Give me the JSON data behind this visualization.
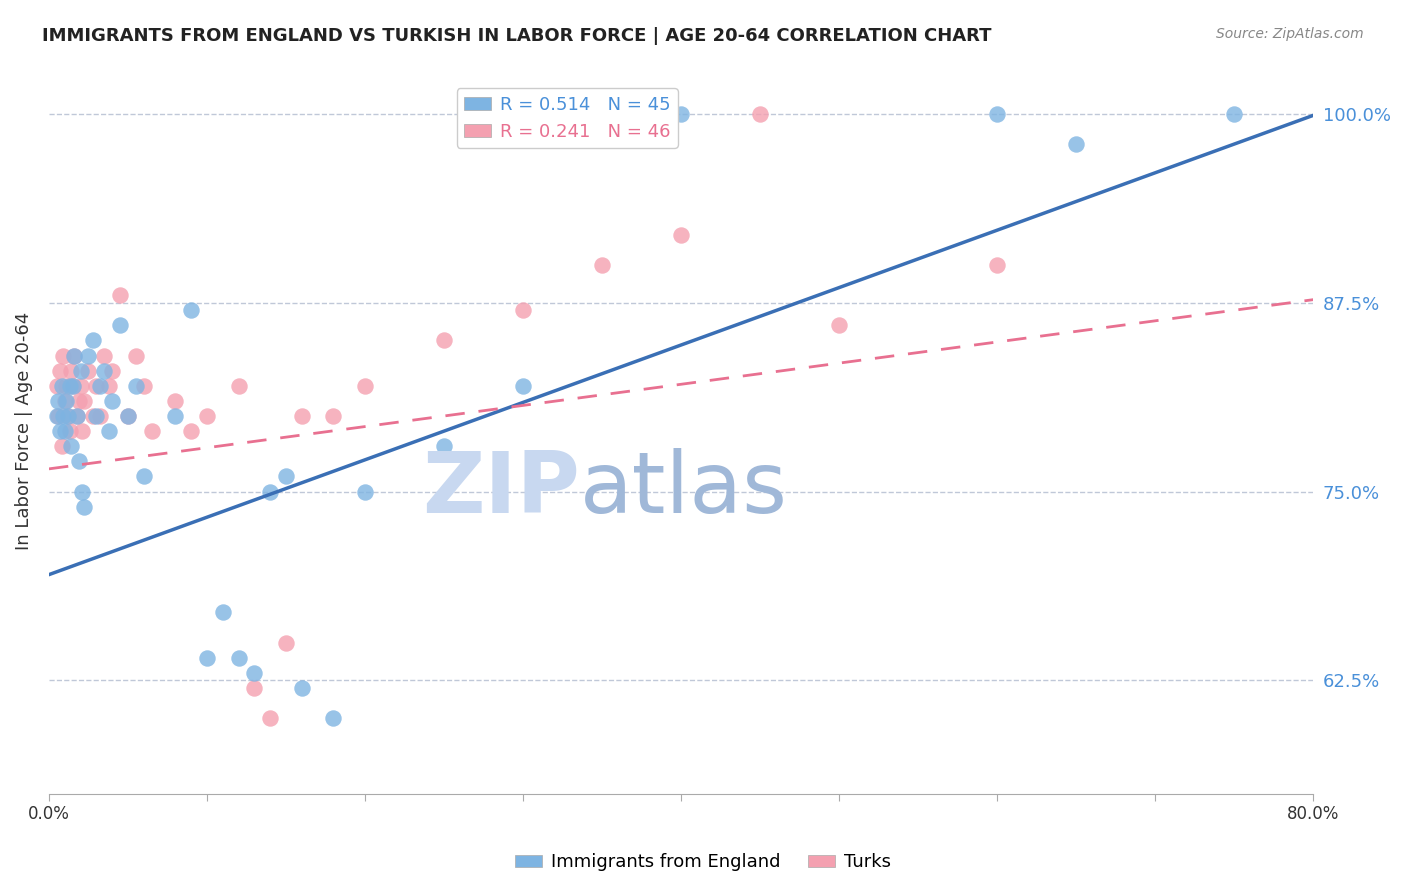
{
  "title": "IMMIGRANTS FROM ENGLAND VS TURKISH IN LABOR FORCE | AGE 20-64 CORRELATION CHART",
  "source": "Source: ZipAtlas.com",
  "ylabel": "In Labor Force | Age 20-64",
  "yticks": [
    0.625,
    0.75,
    0.875,
    1.0
  ],
  "ytick_labels": [
    "62.5%",
    "75.0%",
    "87.5%",
    "100.0%"
  ],
  "xlim": [
    0.0,
    0.8
  ],
  "ylim": [
    0.55,
    1.03
  ],
  "blue_R": 0.514,
  "blue_N": 45,
  "pink_R": 0.241,
  "pink_N": 46,
  "blue_color": "#7EB4E2",
  "pink_color": "#F4A0B0",
  "blue_line_color": "#3A6FB5",
  "pink_line_color": "#E87090",
  "watermark_zip": "ZIP",
  "watermark_atlas": "atlas",
  "watermark_color_zip": "#C8D8F0",
  "watermark_color_atlas": "#A0B8D8",
  "legend_label_blue": "Immigrants from England",
  "legend_label_pink": "Turks",
  "blue_x": [
    0.005,
    0.006,
    0.007,
    0.008,
    0.009,
    0.01,
    0.011,
    0.012,
    0.013,
    0.014,
    0.015,
    0.016,
    0.018,
    0.019,
    0.02,
    0.021,
    0.022,
    0.025,
    0.028,
    0.03,
    0.032,
    0.035,
    0.038,
    0.04,
    0.045,
    0.05,
    0.055,
    0.06,
    0.08,
    0.09,
    0.1,
    0.11,
    0.12,
    0.13,
    0.14,
    0.15,
    0.16,
    0.18,
    0.2,
    0.25,
    0.3,
    0.4,
    0.6,
    0.65,
    0.75
  ],
  "blue_y": [
    0.8,
    0.81,
    0.79,
    0.82,
    0.8,
    0.79,
    0.81,
    0.8,
    0.82,
    0.78,
    0.82,
    0.84,
    0.8,
    0.77,
    0.83,
    0.75,
    0.74,
    0.84,
    0.85,
    0.8,
    0.82,
    0.83,
    0.79,
    0.81,
    0.86,
    0.8,
    0.82,
    0.76,
    0.8,
    0.87,
    0.64,
    0.67,
    0.64,
    0.63,
    0.75,
    0.76,
    0.62,
    0.6,
    0.75,
    0.78,
    0.82,
    1.0,
    1.0,
    0.98,
    1.0
  ],
  "pink_x": [
    0.005,
    0.006,
    0.007,
    0.008,
    0.009,
    0.01,
    0.011,
    0.012,
    0.013,
    0.014,
    0.015,
    0.016,
    0.018,
    0.019,
    0.02,
    0.021,
    0.022,
    0.025,
    0.028,
    0.03,
    0.032,
    0.035,
    0.038,
    0.04,
    0.045,
    0.05,
    0.055,
    0.06,
    0.065,
    0.08,
    0.09,
    0.1,
    0.12,
    0.13,
    0.14,
    0.15,
    0.16,
    0.18,
    0.2,
    0.25,
    0.3,
    0.35,
    0.4,
    0.45,
    0.5,
    0.6
  ],
  "pink_y": [
    0.82,
    0.8,
    0.83,
    0.78,
    0.84,
    0.81,
    0.82,
    0.8,
    0.79,
    0.83,
    0.82,
    0.84,
    0.8,
    0.81,
    0.82,
    0.79,
    0.81,
    0.83,
    0.8,
    0.82,
    0.8,
    0.84,
    0.82,
    0.83,
    0.88,
    0.8,
    0.84,
    0.82,
    0.79,
    0.81,
    0.79,
    0.8,
    0.82,
    0.62,
    0.6,
    0.65,
    0.8,
    0.8,
    0.82,
    0.85,
    0.87,
    0.9,
    0.92,
    1.0,
    0.86,
    0.9
  ],
  "blue_intercept": 0.695,
  "blue_slope": 0.38,
  "pink_intercept": 0.765,
  "pink_slope": 0.14
}
